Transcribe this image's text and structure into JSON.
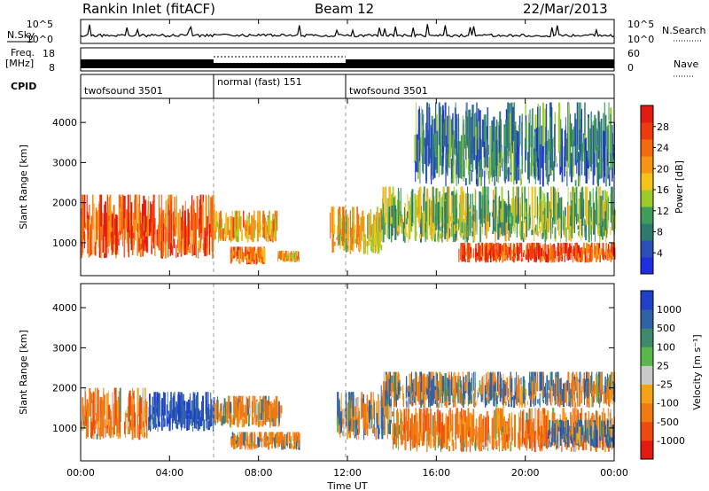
{
  "header": {
    "station": "Rankin Inlet (fitACF)",
    "beam": "Beam 12",
    "date": "22/Mar/2013"
  },
  "panels": {
    "nsky_label": "N.Sky",
    "nsearch_label": "N.Search",
    "noise_ticks": [
      "10^5",
      "10^0"
    ],
    "freq_label_1": "Freq.",
    "freq_label_2": "[MHz]",
    "freq_ticks": [
      "18",
      "8"
    ],
    "nave_label": "Nave",
    "nave_ticks": [
      "60",
      "0"
    ],
    "cpid_label": "CPID",
    "cpid_segments": [
      {
        "label": "twofsound 3501",
        "start_h": 0,
        "end_h": 6
      },
      {
        "label": "normal (fast) 151",
        "start_h": 6,
        "end_h": 12
      },
      {
        "label": "twofsound 3501",
        "start_h": 12,
        "end_h": 24
      }
    ]
  },
  "axes": {
    "ylabel": "Slant Range [km]",
    "yticks": [
      "1000",
      "2000",
      "3000",
      "4000"
    ],
    "xticks": [
      "00:00",
      "04:00",
      "08:00",
      "12:00",
      "16:00",
      "20:00",
      "00:00"
    ],
    "xlabel": "Time UT"
  },
  "colorbars": {
    "power": {
      "label": "Power [dB]",
      "ticks": [
        "4",
        "8",
        "12",
        "16",
        "20",
        "24",
        "28"
      ],
      "colors": [
        "#1f2ee0",
        "#2a50b8",
        "#2f7a6f",
        "#3f9d5a",
        "#9bcc2c",
        "#f4c21a",
        "#f69414",
        "#f56a0f",
        "#ef3a10",
        "#e41a10"
      ]
    },
    "velocity": {
      "label": "Velocity [m s⁻¹]",
      "ticks": [
        "1000",
        "500",
        "100",
        "25",
        "-25",
        "-100",
        "-500",
        "-1000"
      ],
      "colors": [
        "#2040c8",
        "#2e63a8",
        "#3f8a6c",
        "#5ab84a",
        "#c8c8c8",
        "#f5a21a",
        "#f27812",
        "#ee4a10",
        "#e41a10"
      ]
    }
  },
  "chart_data": [
    {
      "type": "heatmap",
      "title": "Power",
      "xlabel": "Time UT",
      "ylabel": "Slant Range [km]",
      "xlim": [
        0,
        24
      ],
      "ylim": [
        180,
        4600
      ],
      "colorbar": {
        "label": "Power [dB]",
        "range": [
          0,
          32
        ]
      },
      "echo_regions": [
        {
          "t0": 0.0,
          "t1": 6.0,
          "r0": 600,
          "r1": 2200,
          "level": 26
        },
        {
          "t0": 6.0,
          "t1": 8.8,
          "r0": 1000,
          "r1": 1800,
          "level": 20
        },
        {
          "t0": 6.7,
          "t1": 8.3,
          "r0": 450,
          "r1": 900,
          "level": 23
        },
        {
          "t0": 8.8,
          "t1": 9.8,
          "r0": 500,
          "r1": 800,
          "level": 20
        },
        {
          "t0": 11.2,
          "t1": 13.5,
          "r0": 700,
          "r1": 1900,
          "level": 18
        },
        {
          "t0": 13.5,
          "t1": 24.0,
          "r0": 1000,
          "r1": 2400,
          "level": 14
        },
        {
          "t0": 17.0,
          "t1": 24.0,
          "r0": 500,
          "r1": 1000,
          "level": 26
        },
        {
          "t0": 15.0,
          "t1": 24.0,
          "r0": 2400,
          "r1": 4500,
          "level": 8
        }
      ]
    },
    {
      "type": "heatmap",
      "title": "Velocity",
      "xlabel": "Time UT",
      "ylabel": "Slant Range [km]",
      "xlim": [
        0,
        24
      ],
      "ylim": [
        180,
        4600
      ],
      "colorbar": {
        "label": "Velocity [m s⁻¹]",
        "range": [
          -1000,
          1000
        ]
      },
      "echo_regions": [
        {
          "t0": 0.0,
          "t1": 3.0,
          "r0": 700,
          "r1": 2000,
          "level": -300
        },
        {
          "t0": 3.0,
          "t1": 6.0,
          "r0": 900,
          "r1": 1900,
          "level": 500
        },
        {
          "t0": 6.0,
          "t1": 9.0,
          "r0": 1000,
          "r1": 1800,
          "level": -200
        },
        {
          "t0": 6.7,
          "t1": 9.8,
          "r0": 450,
          "r1": 900,
          "level": -150
        },
        {
          "t0": 11.5,
          "t1": 14.0,
          "r0": 700,
          "r1": 1900,
          "level": 0
        },
        {
          "t0": 13.5,
          "t1": 24.0,
          "r0": 1500,
          "r1": 2400,
          "level": 0
        },
        {
          "t0": 14.0,
          "t1": 24.0,
          "r0": 400,
          "r1": 1500,
          "level": -300
        },
        {
          "t0": 21.0,
          "t1": 24.0,
          "r0": 500,
          "r1": 1200,
          "level": 200
        }
      ]
    }
  ]
}
